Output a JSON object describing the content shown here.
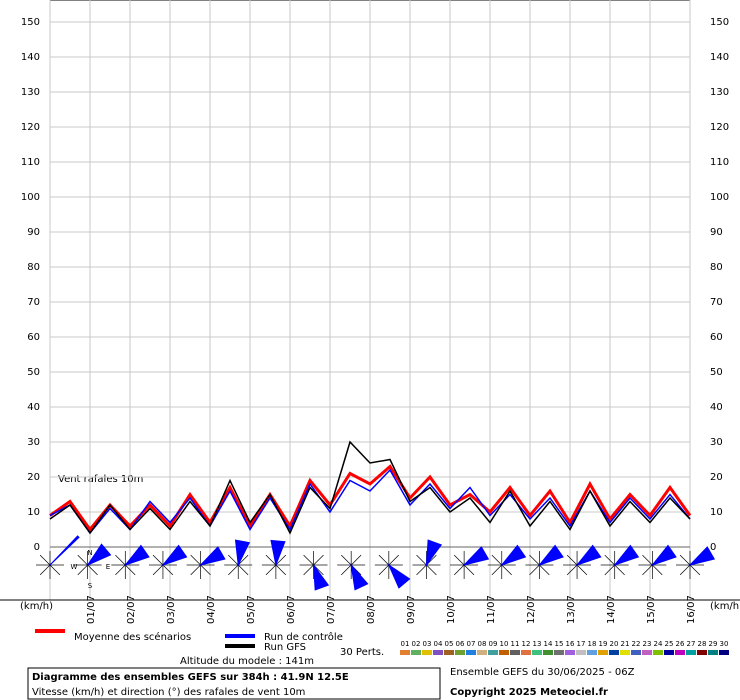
{
  "chart_data": {
    "type": "line",
    "annotation": "Vent rafales 10m",
    "y_unit_left": "(km/h)",
    "y_unit_right": "(km/h)",
    "categories": [
      null,
      null,
      "01/07",
      null,
      "02/07",
      null,
      "03/07",
      null,
      "04/07",
      null,
      "05/07",
      null,
      "06/07",
      null,
      "07/07",
      null,
      "08/07",
      null,
      "09/07",
      null,
      "10/07",
      null,
      "11/07",
      null,
      "12/07",
      null,
      "13/07",
      null,
      "14/07",
      null,
      "15/07",
      null,
      "16/07"
    ],
    "series": [
      {
        "name": "Moyenne des scénarios",
        "color": "#ff0000",
        "values": [
          9,
          13,
          5,
          12,
          6,
          12,
          6,
          15,
          7,
          17,
          6,
          15,
          6,
          19,
          12,
          21,
          18,
          23,
          14,
          20,
          12,
          15,
          10,
          17,
          9,
          16,
          7,
          18,
          8,
          15,
          9,
          17,
          9
        ]
      },
      {
        "name": "Run de contrôle",
        "color": "#0000ff",
        "values": [
          9,
          12,
          4,
          11,
          5,
          13,
          7,
          14,
          6,
          16,
          5,
          14,
          5,
          18,
          10,
          19,
          16,
          22,
          12,
          18,
          11,
          17,
          9,
          15,
          8,
          14,
          6,
          16,
          7,
          14,
          8,
          15,
          8
        ]
      },
      {
        "name": "Run GFS",
        "color": "#000000",
        "values": [
          8,
          12,
          4,
          12,
          5,
          11,
          5,
          13,
          6,
          19,
          7,
          15,
          4,
          17,
          11,
          30,
          24,
          25,
          13,
          17,
          10,
          14,
          7,
          16,
          6,
          13,
          5,
          16,
          6,
          13,
          7,
          14,
          8
        ]
      }
    ],
    "ylim": [
      0,
      150
    ],
    "yticks": [
      0,
      10,
      20,
      30,
      40,
      50,
      60,
      70,
      80,
      90,
      100,
      110,
      120,
      130,
      140,
      150
    ],
    "grid": true,
    "wind": {
      "compass": [
        "N",
        "W",
        "E",
        "S"
      ],
      "directions": [
        45,
        50,
        55,
        55,
        60,
        10,
        5,
        160,
        155,
        140,
        20,
        60,
        55,
        55,
        55,
        55,
        55,
        60
      ]
    },
    "perturbations": {
      "title": "30 Perts.",
      "labels": [
        "01",
        "02",
        "03",
        "04",
        "05",
        "06",
        "07",
        "08",
        "09",
        "10",
        "11",
        "12",
        "13",
        "14",
        "15",
        "16",
        "17",
        "18",
        "19",
        "20",
        "21",
        "22",
        "23",
        "24",
        "25",
        "26",
        "27",
        "28",
        "29",
        "30"
      ],
      "colors": [
        "#e08030",
        "#60b060",
        "#e0c000",
        "#8050c0",
        "#a06020",
        "#70a030",
        "#2080e0",
        "#d0b080",
        "#40a0a0",
        "#c06000",
        "#606060",
        "#e07040",
        "#40c080",
        "#409030",
        "#707070",
        "#a060e0",
        "#c0c0c0",
        "#60a0e0",
        "#e0a000",
        "#0040a0",
        "#e0e000",
        "#4060c0",
        "#c060c0",
        "#80c000",
        "#0000a0",
        "#c000c0",
        "#00a0a0",
        "#800000",
        "#008080",
        "#000080"
      ]
    },
    "altitude": "Altitude du modele : 141m",
    "info_title": "Diagramme des ensembles GEFS sur 384h : 41.9N 12.5E",
    "info_subtitle": "Vitesse (km/h) et direction (°) des rafales de vent 10m",
    "run": "Ensemble GEFS du 30/06/2025 - 06Z",
    "copyright": "Copyright 2025 Meteociel.fr"
  }
}
